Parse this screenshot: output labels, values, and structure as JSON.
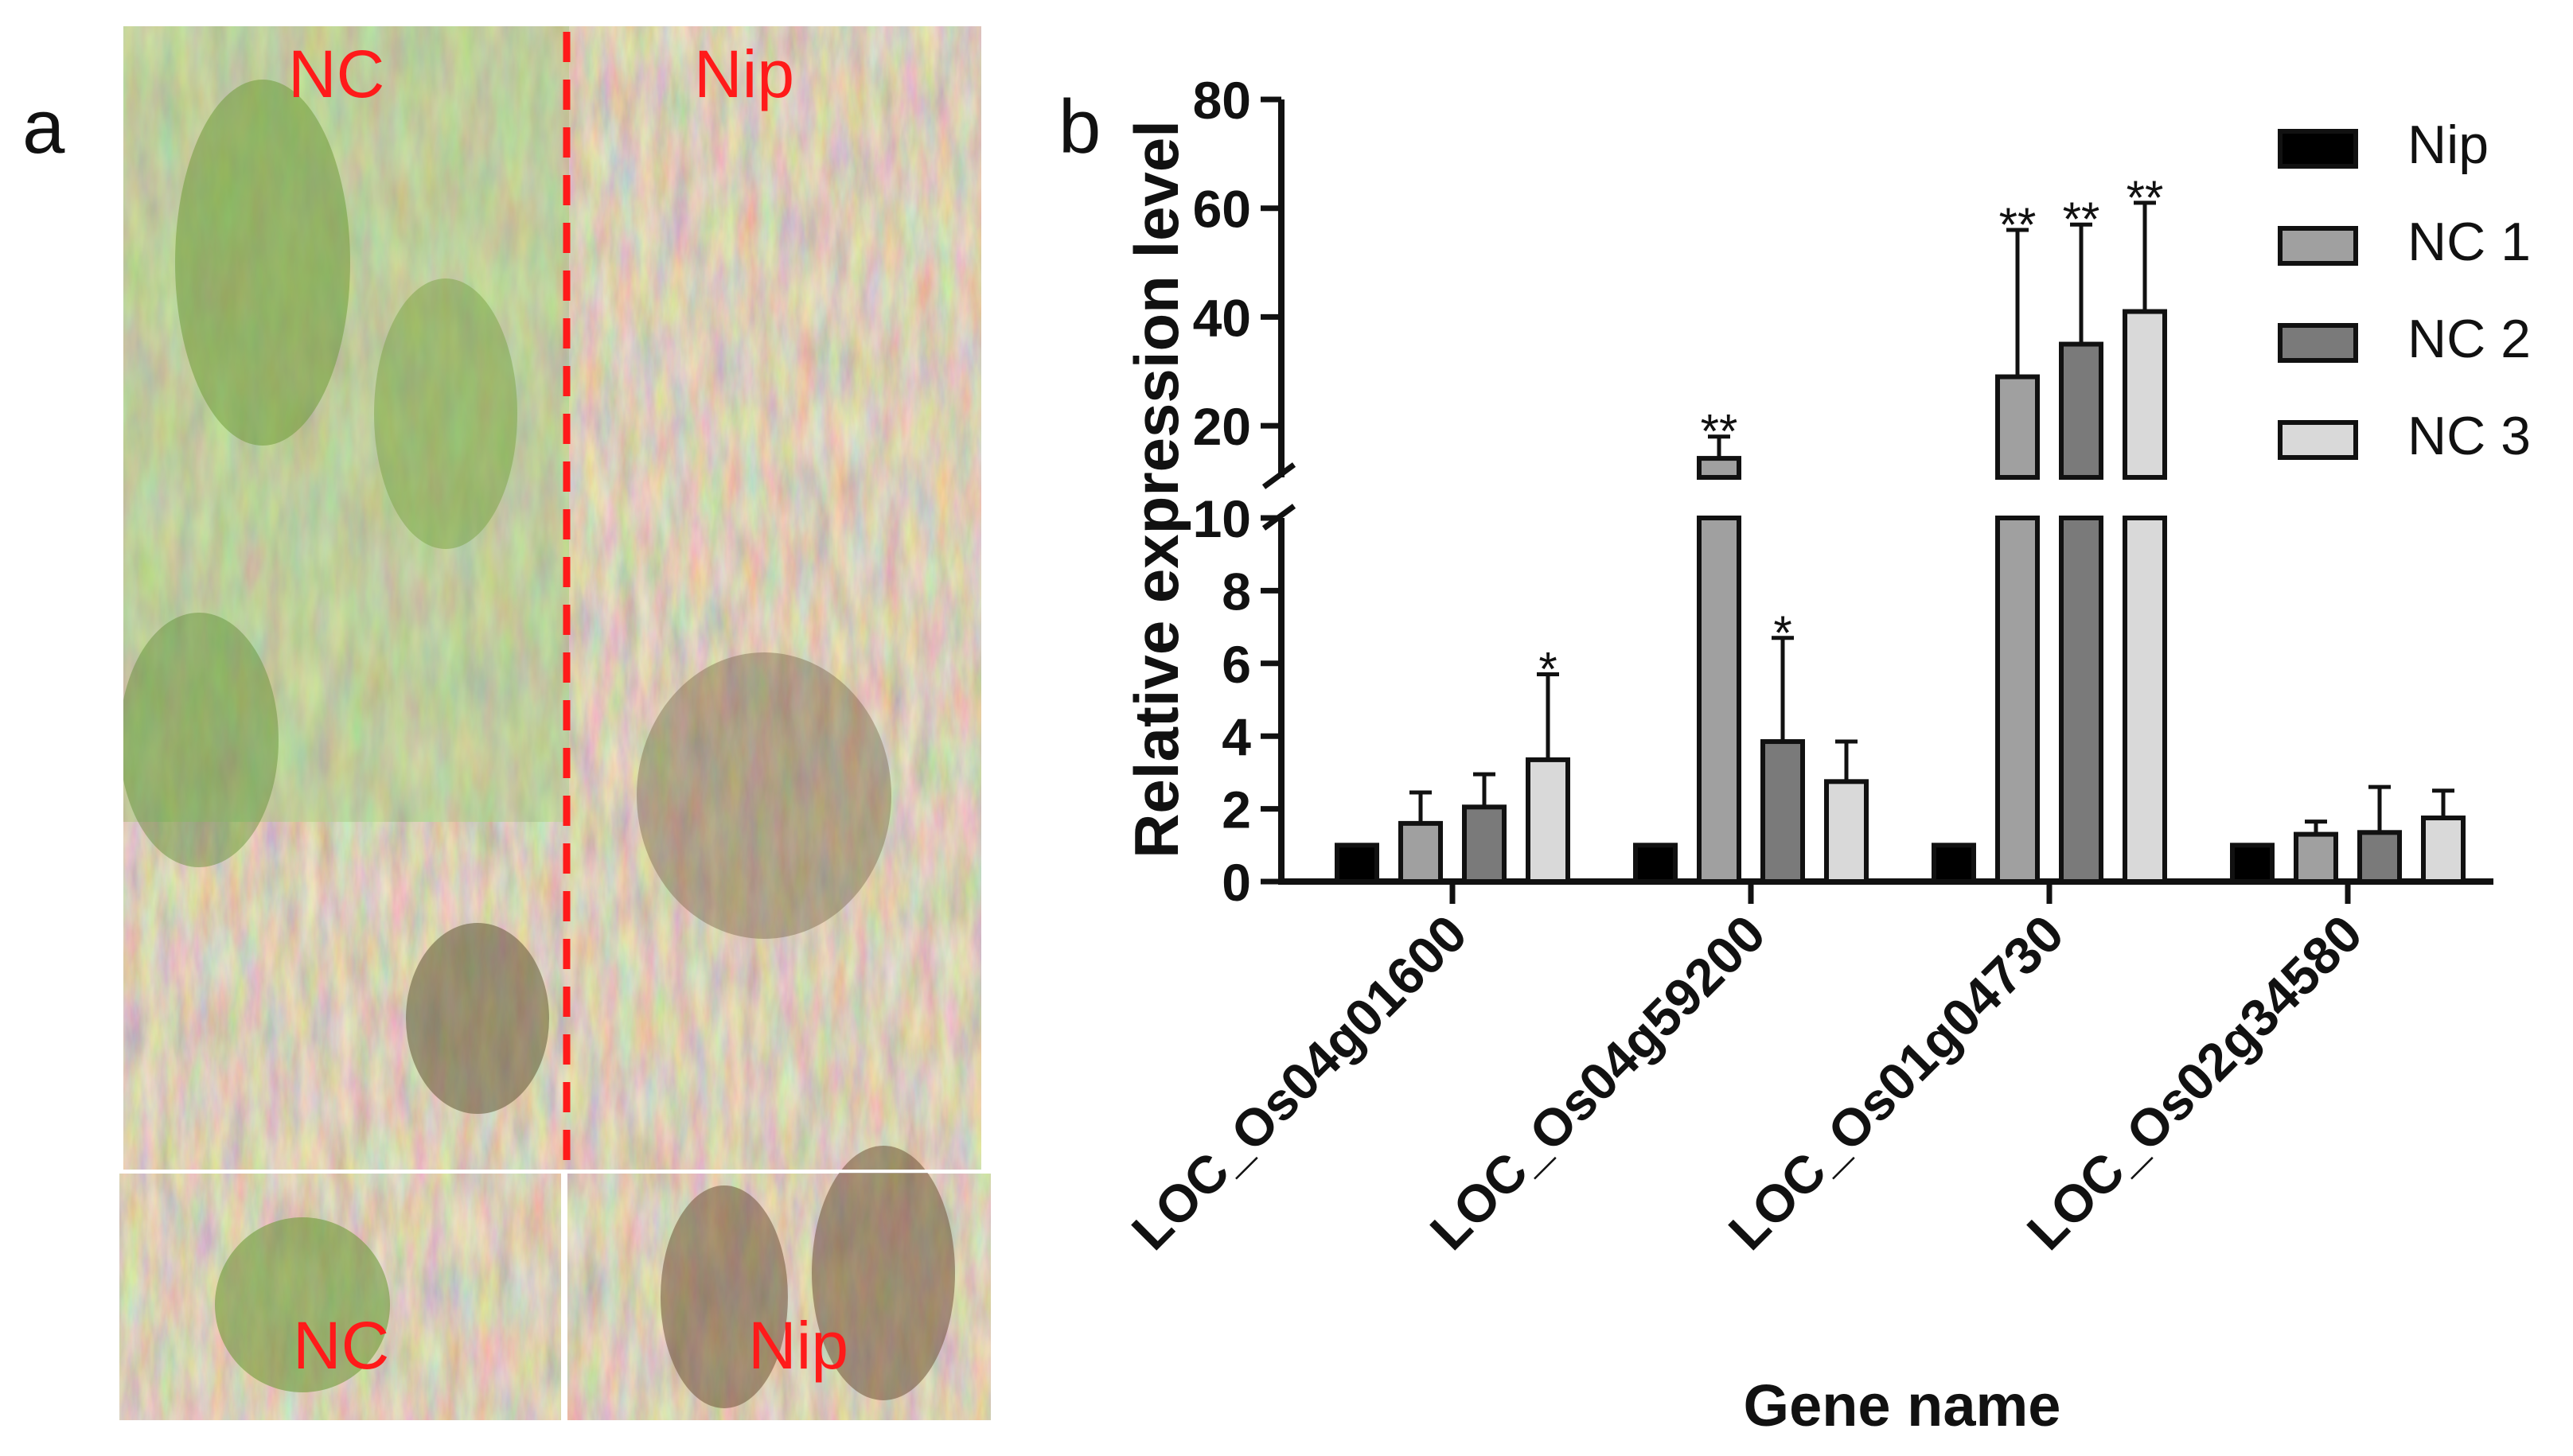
{
  "panel_labels": {
    "a": "a",
    "b": "b"
  },
  "photo": {
    "labels": {
      "top_left": "NC",
      "top_right": "Nip",
      "bottom_left": "NC",
      "bottom_right": "Nip"
    },
    "colors": {
      "label": "#ff1a1a",
      "divider": "#ff1a1a",
      "grass_green": "#5f8a32",
      "straw": "#b39a72",
      "soil": "#5b5347"
    }
  },
  "chart_data": {
    "type": "bar",
    "title": "",
    "xlabel": "Gene name",
    "ylabel": "Relative expression level",
    "categories": [
      "LOC_Os04g01600",
      "LOC_Os04g59200",
      "LOC_Os01g04730",
      "LOC_Os02g34580"
    ],
    "series": [
      {
        "name": "Nip",
        "color": "#000000",
        "values": [
          1,
          1,
          1,
          1
        ],
        "errors": [
          0,
          0,
          0,
          0
        ],
        "significance": [
          "",
          "",
          "",
          ""
        ]
      },
      {
        "name": "NC 1",
        "color": "#a0a0a0",
        "values": [
          1.6,
          14,
          29,
          1.3
        ],
        "errors": [
          0.85,
          4,
          27,
          0.35
        ],
        "significance": [
          "",
          "**",
          "**",
          ""
        ]
      },
      {
        "name": "NC 2",
        "color": "#7a7a7a",
        "values": [
          2.05,
          3.85,
          35,
          1.35
        ],
        "errors": [
          0.9,
          2.85,
          22,
          1.25
        ],
        "significance": [
          "",
          "*",
          "**",
          ""
        ]
      },
      {
        "name": "NC 3",
        "color": "#d9d9d9",
        "values": [
          3.35,
          2.75,
          41,
          1.75
        ],
        "errors": [
          2.35,
          1.1,
          20,
          0.75
        ],
        "significance": [
          "*",
          "",
          "**",
          ""
        ]
      }
    ],
    "axis_break": {
      "lower_range": [
        0,
        10
      ],
      "upper_range": [
        10,
        80
      ]
    },
    "y_ticks_lower": [
      "0",
      "2",
      "4",
      "6",
      "8",
      "10"
    ],
    "y_ticks_upper": [
      "20",
      "40",
      "60",
      "80"
    ],
    "legend_position": "top-right",
    "grid": false
  }
}
